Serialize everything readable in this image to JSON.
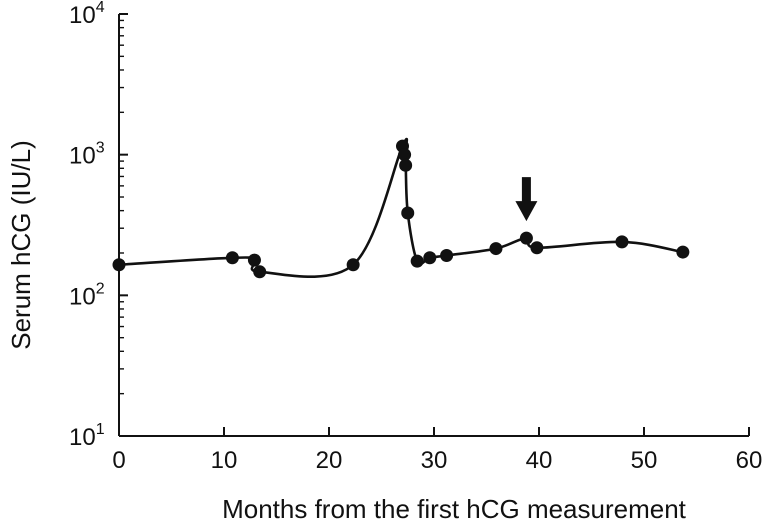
{
  "chart_data": {
    "type": "scatter",
    "title": "",
    "xlabel": "Months from the first hCG measurement",
    "ylabel": "Serum hCG (IU/L)",
    "xlim": [
      0,
      60
    ],
    "ylim": [
      10,
      10000
    ],
    "yscale": "log",
    "x_ticks": [
      "0",
      "10",
      "20",
      "30",
      "40",
      "50",
      "60"
    ],
    "y_ticks": [
      {
        "base": "10",
        "exp": "1"
      },
      {
        "base": "10",
        "exp": "2"
      },
      {
        "base": "10",
        "exp": "3"
      },
      {
        "base": "10",
        "exp": "4"
      }
    ],
    "grid": false,
    "legend": "none",
    "marker_color": "#111111",
    "line_color": "#111111",
    "series": [
      {
        "points": [
          {
            "x": 0,
            "y": 165
          },
          {
            "x": 10.8,
            "y": 185
          },
          {
            "x": 12.9,
            "y": 178
          },
          {
            "x": 13.4,
            "y": 147
          },
          {
            "x": 22.3,
            "y": 165
          },
          {
            "x": 27.0,
            "y": 1150
          },
          {
            "x": 27.2,
            "y": 1000
          },
          {
            "x": 27.3,
            "y": 840
          },
          {
            "x": 27.5,
            "y": 385
          },
          {
            "x": 28.4,
            "y": 175
          },
          {
            "x": 29.6,
            "y": 185
          },
          {
            "x": 31.2,
            "y": 192
          },
          {
            "x": 35.9,
            "y": 215
          },
          {
            "x": 38.8,
            "y": 255
          },
          {
            "x": 39.8,
            "y": 218
          },
          {
            "x": 47.9,
            "y": 240
          },
          {
            "x": 53.7,
            "y": 203
          }
        ]
      }
    ],
    "annotations": [
      {
        "type": "arrow-down",
        "x": 38.8,
        "points_to_value": 255
      }
    ]
  }
}
